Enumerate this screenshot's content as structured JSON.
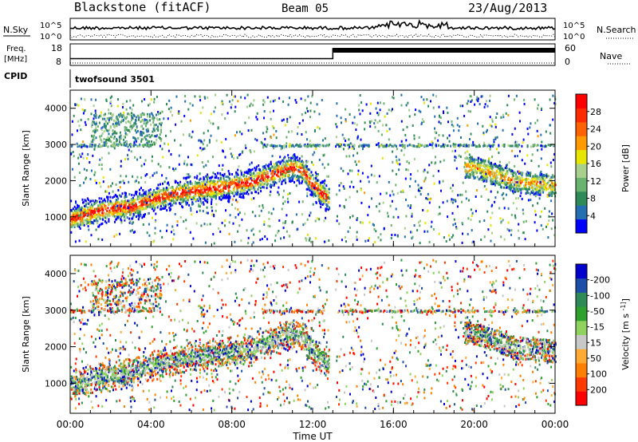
{
  "header": {
    "station": "Blackstone (fitACF)",
    "beam": "Beam 05",
    "date": "23/Aug/2013"
  },
  "noise_panel": {
    "left_label": "N.Sky",
    "right_label": "N.Search",
    "left_ticks": [
      "10^5",
      "10^0"
    ],
    "right_ticks": [
      "10^5",
      "10^0"
    ]
  },
  "freq_panel": {
    "left_label_1": "Freq.",
    "left_label_2": "[MHz]",
    "right_label": "Nave",
    "left_ticks": [
      "18",
      "8"
    ],
    "right_ticks": [
      "60",
      "0"
    ],
    "switch_time_hours": 13.0,
    "freq_before_fraction": 0.3,
    "freq_after_fraction": 0.8
  },
  "cpid_panel": {
    "label": "CPID",
    "program": "twofsound 3501"
  },
  "colors": {
    "power_scale": [
      "#0000ff",
      "#246fb1",
      "#2e8b57",
      "#6ab26f",
      "#a8d08d",
      "#e6e600",
      "#ff9a00",
      "#ff6200",
      "#ff2a00",
      "#ff0000"
    ],
    "velocity_scale": [
      "#ff0000",
      "#ff3a00",
      "#ff8000",
      "#ffaa33",
      "#c8c8c8",
      "#8fd35e",
      "#2ea02e",
      "#2e8b57",
      "#1e4fa8",
      "#0000cc"
    ]
  },
  "chart_data": [
    {
      "type": "heatmap",
      "name": "power",
      "ylabel": "Slant Range [km]",
      "colorbar_label": "Power [dB]",
      "colorbar_ticks": [
        4,
        8,
        12,
        16,
        20,
        24,
        28
      ],
      "colorbar_range": [
        0,
        32
      ],
      "x_range_hours": [
        0,
        24
      ],
      "y_range_km": [
        180,
        4500
      ],
      "y_ticks": [
        1000,
        2000,
        3000,
        4000
      ],
      "main_scatter_band": {
        "hours": [
          0,
          1,
          2,
          3,
          4,
          5,
          6,
          7,
          8,
          9,
          10,
          11,
          11.5,
          12,
          12.7
        ],
        "range_km": [
          950,
          1150,
          1250,
          1300,
          1500,
          1650,
          1750,
          1800,
          1900,
          2000,
          2200,
          2400,
          2300,
          1900,
          1550
        ]
      },
      "late_band": {
        "hours": [
          20,
          21,
          22,
          23,
          24
        ],
        "range_km": [
          2400,
          2200,
          2000,
          1950,
          1900
        ]
      },
      "horizontal_echo_band_km": 3000,
      "data_gap_hours": [
        12.8,
        13.1
      ]
    },
    {
      "type": "heatmap",
      "name": "velocity",
      "ylabel": "Slant Range [km]",
      "colorbar_label": "Velocity [m s^-1]",
      "colorbar_ticks": [
        -200,
        -100,
        -50,
        -15,
        15,
        50,
        100,
        200
      ],
      "x_range_hours": [
        0,
        24
      ],
      "y_range_km": [
        180,
        4500
      ],
      "y_ticks": [
        1000,
        2000,
        3000,
        4000
      ],
      "xlabel": "Time UT",
      "x_ticks": [
        "00:00",
        "04:00",
        "08:00",
        "12:00",
        "16:00",
        "20:00",
        "00:00"
      ]
    }
  ]
}
